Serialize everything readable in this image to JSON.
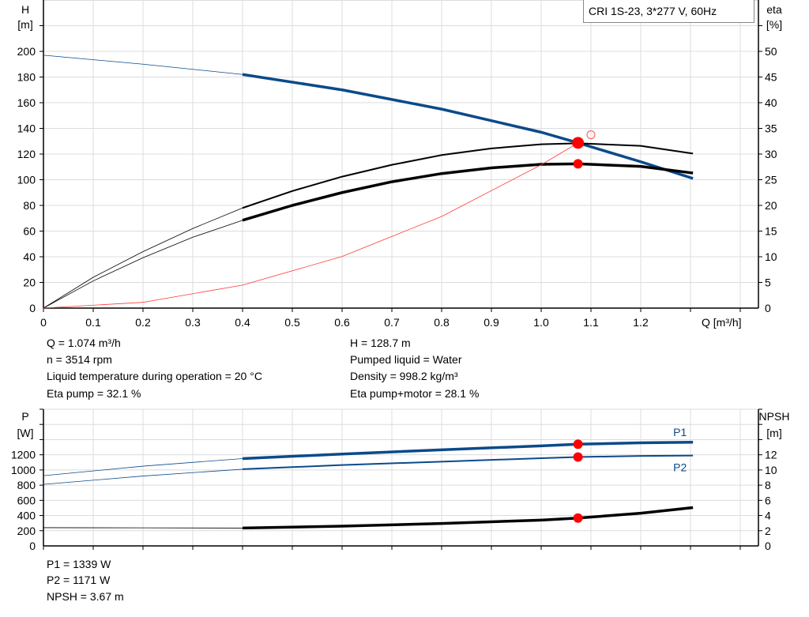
{
  "chart_data": [
    {
      "type": "line",
      "title": "CRI 1S-23, 3*277 V, 60Hz",
      "xlabel": "Q [m³/h]",
      "ylabel": "H",
      "ylabel_unit": "[m]",
      "y2label": "eta",
      "y2label_unit": "[%]",
      "xlim": [
        0,
        1.4
      ],
      "ylim": [
        0,
        220
      ],
      "y2lim": [
        0,
        55
      ],
      "grid": true,
      "xticks": [
        "0",
        "0.1",
        "0.2",
        "0.3",
        "0.4",
        "0.5",
        "0.6",
        "0.7",
        "0.8",
        "0.9",
        "1.0",
        "1.1",
        "1.2"
      ],
      "yticks": [
        "0",
        "20",
        "40",
        "60",
        "80",
        "100",
        "120",
        "140",
        "160",
        "180",
        "200"
      ],
      "y2ticks": [
        "0",
        "5",
        "10",
        "15",
        "20",
        "25",
        "30",
        "35",
        "40",
        "45",
        "50"
      ],
      "series": [
        {
          "key": "H",
          "axis": "left",
          "color": "#0b4a8a",
          "x": [
            0,
            0.2,
            0.4,
            0.6,
            0.8,
            1.0,
            1.074,
            1.2,
            1.305
          ],
          "y": [
            197,
            190,
            182,
            170,
            155,
            137,
            128.7,
            114,
            101
          ]
        },
        {
          "key": "eta_pump",
          "axis": "right",
          "color": "#000000",
          "x": [
            0,
            0.1,
            0.2,
            0.3,
            0.4,
            0.5,
            0.6,
            0.7,
            0.8,
            0.9,
            1.0,
            1.074,
            1.2,
            1.305
          ],
          "y": [
            0,
            6,
            11,
            15.5,
            19.5,
            22.8,
            25.6,
            27.9,
            29.8,
            31.1,
            31.9,
            32.1,
            31.6,
            30.1
          ]
        },
        {
          "key": "eta_total",
          "axis": "right",
          "color": "#000000",
          "x": [
            0,
            0.1,
            0.2,
            0.3,
            0.4,
            0.5,
            0.6,
            0.7,
            0.8,
            0.9,
            1.0,
            1.074,
            1.2,
            1.305
          ],
          "y": [
            0,
            5.3,
            9.8,
            13.8,
            17.1,
            20,
            22.5,
            24.6,
            26.2,
            27.3,
            28,
            28.1,
            27.6,
            26.3
          ]
        },
        {
          "key": "system",
          "axis": "left",
          "color": "#ff3b3b",
          "x": [
            0,
            0.2,
            0.4,
            0.6,
            0.8,
            1.0,
            1.074
          ],
          "y": [
            0,
            4.5,
            17.9,
            40.2,
            71.4,
            111.6,
            128.7
          ]
        }
      ],
      "duty_points": [
        {
          "x": 1.074,
          "y": 128.7,
          "axis": "left"
        },
        {
          "x": 1.074,
          "y": 28.1,
          "axis": "right"
        }
      ],
      "open_point": {
        "x": 1.1,
        "y": 135
      }
    },
    {
      "type": "line",
      "ylabel": "P",
      "ylabel_unit": "[W]",
      "y2label": "NPSH",
      "y2label_unit": "[m]",
      "xlim": [
        0,
        1.4
      ],
      "ylim": [
        0,
        1800
      ],
      "y2lim": [
        0,
        18
      ],
      "grid": true,
      "yticks": [
        "0",
        "200",
        "400",
        "600",
        "800",
        "1000",
        "1200"
      ],
      "y2ticks": [
        "0",
        "2",
        "4",
        "6",
        "8",
        "10",
        "12"
      ],
      "series": [
        {
          "name": "P1",
          "axis": "left",
          "color": "#0b4a8a",
          "x": [
            0,
            0.2,
            0.4,
            0.6,
            0.8,
            1.0,
            1.074,
            1.2,
            1.305
          ],
          "y": [
            925,
            1050,
            1150,
            1210,
            1265,
            1318,
            1339,
            1358,
            1365
          ]
        },
        {
          "name": "P2",
          "axis": "left",
          "color": "#0b4a8a",
          "x": [
            0,
            0.2,
            0.4,
            0.6,
            0.8,
            1.0,
            1.074,
            1.2,
            1.305
          ],
          "y": [
            810,
            920,
            1010,
            1065,
            1110,
            1155,
            1171,
            1185,
            1190
          ]
        },
        {
          "key": "NPSH",
          "axis": "right",
          "color": "#000000",
          "x": [
            0,
            0.2,
            0.4,
            0.6,
            0.8,
            1.0,
            1.074,
            1.2,
            1.305
          ],
          "y": [
            2.4,
            2.38,
            2.35,
            2.6,
            2.95,
            3.4,
            3.67,
            4.3,
            5.05
          ]
        }
      ],
      "duty_points": [
        {
          "x": 1.074,
          "y": 1339
        },
        {
          "x": 1.074,
          "y": 1171
        },
        {
          "x": 1.074,
          "y": 3.67,
          "axis": "right"
        }
      ]
    }
  ],
  "info": {
    "left": [
      "Q = 1.074 m³/h",
      "n = 3514 rpm",
      "Liquid temperature during operation = 20 °C",
      "Eta pump = 32.1 %"
    ],
    "right": [
      "H = 128.7 m",
      "Pumped liquid = Water",
      "Density = 998.2 kg/m³",
      "Eta pump+motor = 28.1 %"
    ],
    "bottom": [
      "P1 = 1339 W",
      "P2 = 1171 W",
      "NPSH = 3.67 m"
    ]
  }
}
